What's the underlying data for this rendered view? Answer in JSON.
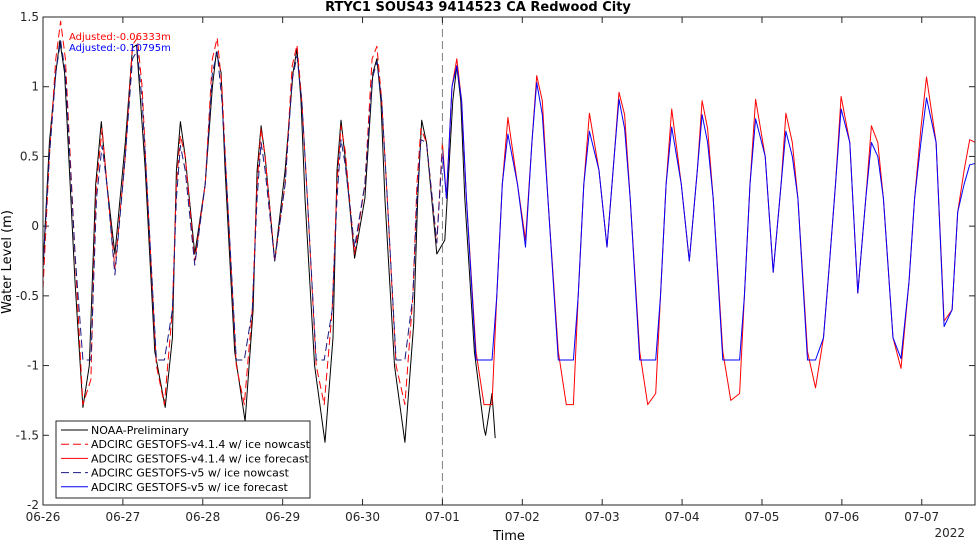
{
  "chart_data": {
    "type": "line",
    "title": "RTYC1 SOUS43 9414523 CA Redwood City",
    "xlabel": "Time",
    "ylabel": "Water Level (m)",
    "x_start": "2021-06-26",
    "x_end": "2021-07-07 16:00",
    "ylim": [
      -2,
      1.5
    ],
    "yticks": [
      -2,
      -1.5,
      -1,
      -0.5,
      0,
      0.5,
      1,
      1.5
    ],
    "ytick_labels": [
      "-2",
      "-1.5",
      "-1",
      "-0.5",
      "0",
      "0.5",
      "1",
      "1.5"
    ],
    "xticks": [
      "2021-06-26",
      "2021-06-27",
      "2021-06-28",
      "2021-06-29",
      "2021-06-30",
      "2021-07-01",
      "2021-07-02",
      "2021-07-03",
      "2021-07-04",
      "2021-07-05",
      "2021-07-06",
      "2021-07-07"
    ],
    "xtick_labels": [
      "06-26",
      "06-27",
      "06-28",
      "06-29",
      "06-30",
      "07-01",
      "07-02",
      "07-03",
      "07-04",
      "07-05",
      "07-06",
      "07-07"
    ],
    "year_label": "2022",
    "nowcast_end": "2021-07-01",
    "grid": false,
    "legend_position": "bottom-left",
    "annotations": [
      {
        "text": "Adjusted:-0.06333m",
        "color": "#ff0000"
      },
      {
        "text": "Adjusted:-0.10795m",
        "color": "#0000ff"
      }
    ],
    "series": [
      {
        "name": "NOAA-Preliminary",
        "color": "#000000",
        "style": "solid",
        "x": [
          0.0,
          0.08,
          0.16,
          0.21,
          0.27,
          0.4,
          0.5,
          0.58,
          0.63,
          0.66,
          0.73,
          0.8,
          0.9,
          1.03,
          1.12,
          1.17,
          1.22,
          1.28,
          1.4,
          1.53,
          1.62,
          1.67,
          1.72,
          1.78,
          1.9,
          2.03,
          2.12,
          2.17,
          2.23,
          2.28,
          2.4,
          2.53,
          2.63,
          2.68,
          2.73,
          2.78,
          2.9,
          3.03,
          3.13,
          3.18,
          3.23,
          3.28,
          3.4,
          3.53,
          3.63,
          3.68,
          3.73,
          3.78,
          3.9,
          4.03,
          4.13,
          4.18,
          4.23,
          4.28,
          4.4,
          4.53,
          4.64,
          4.69,
          4.74,
          4.8,
          4.93,
          5.03,
          5.13,
          5.18,
          5.23,
          5.28,
          5.4,
          5.52,
          5.54,
          5.62,
          5.66
        ],
        "y": [
          -0.3,
          0.6,
          1.1,
          1.33,
          1.1,
          -0.4,
          -1.3,
          -1.0,
          -0.2,
          0.3,
          0.75,
          0.3,
          -0.2,
          0.6,
          1.28,
          1.3,
          0.9,
          0.4,
          -0.9,
          -1.3,
          -0.8,
          0.4,
          0.75,
          0.5,
          -0.2,
          0.3,
          1.0,
          1.25,
          1.1,
          0.4,
          -0.9,
          -1.4,
          -0.6,
          0.4,
          0.72,
          0.5,
          -0.25,
          0.4,
          1.1,
          1.27,
          0.9,
          0.2,
          -1.0,
          -1.55,
          -0.8,
          0.4,
          0.76,
          0.5,
          -0.23,
          0.2,
          1.1,
          1.2,
          0.9,
          0.2,
          -1.0,
          -1.55,
          -0.7,
          0.2,
          0.76,
          0.6,
          -0.2,
          -0.1,
          0.9,
          1.15,
          0.9,
          0.2,
          -0.9,
          -1.45,
          -1.5,
          -1.2,
          -1.52
        ]
      },
      {
        "name": "ADCIRC GESTOFS-v4.1.4 w/ ice nowcast",
        "color": "#ff0000",
        "style": "dashed",
        "x": [
          0.0,
          0.08,
          0.16,
          0.22,
          0.28,
          0.4,
          0.5,
          0.6,
          0.64,
          0.67,
          0.74,
          0.8,
          0.9,
          1.03,
          1.12,
          1.18,
          1.24,
          1.3,
          1.42,
          1.52,
          1.62,
          1.67,
          1.72,
          1.78,
          1.9,
          2.03,
          2.12,
          2.18,
          2.24,
          2.3,
          2.42,
          2.52,
          2.62,
          2.68,
          2.73,
          2.78,
          2.9,
          3.03,
          3.12,
          3.18,
          3.24,
          3.3,
          3.42,
          3.52,
          3.62,
          3.68,
          3.73,
          3.78,
          3.9,
          4.03,
          4.12,
          4.18,
          4.24,
          4.3,
          4.42,
          4.53,
          4.63,
          4.68,
          4.73,
          4.8,
          4.93,
          5.0
        ],
        "y": [
          -0.45,
          0.5,
          1.2,
          1.47,
          1.2,
          -0.2,
          -1.28,
          -1.1,
          -0.2,
          0.3,
          0.7,
          0.3,
          -0.3,
          0.5,
          1.3,
          1.35,
          1.0,
          0.3,
          -1.0,
          -1.28,
          -0.6,
          0.3,
          0.65,
          0.5,
          -0.25,
          0.3,
          1.2,
          1.35,
          1.0,
          0.3,
          -1.0,
          -1.28,
          -0.6,
          0.3,
          0.7,
          0.5,
          -0.25,
          0.3,
          1.15,
          1.3,
          0.9,
          0.3,
          -1.0,
          -1.28,
          -0.6,
          0.3,
          0.72,
          0.55,
          -0.2,
          0.3,
          1.2,
          1.29,
          0.9,
          0.3,
          -1.0,
          -1.28,
          -0.5,
          0.3,
          0.7,
          0.6,
          -0.12,
          0.6
        ]
      },
      {
        "name": "ADCIRC GESTOFS-v4.1.4 w/ ice forecast",
        "color": "#ff0000",
        "style": "solid",
        "x": [
          5.0,
          5.05,
          5.12,
          5.18,
          5.24,
          5.3,
          5.42,
          5.52,
          5.62,
          5.68,
          5.75,
          5.82,
          5.94,
          6.04,
          6.12,
          6.18,
          6.25,
          6.32,
          6.45,
          6.55,
          6.64,
          6.7,
          6.77,
          6.84,
          6.96,
          7.06,
          7.15,
          7.21,
          7.28,
          7.35,
          7.47,
          7.57,
          7.67,
          7.73,
          7.8,
          7.87,
          7.99,
          8.09,
          8.19,
          8.25,
          8.32,
          8.39,
          8.51,
          8.61,
          8.72,
          8.78,
          8.85,
          8.92,
          9.04,
          9.14,
          9.24,
          9.3,
          9.38,
          9.45,
          9.57,
          9.67,
          9.77,
          9.84,
          9.92,
          9.99,
          10.1,
          10.2,
          10.3,
          10.37,
          10.45,
          10.52,
          10.64,
          10.74,
          10.84,
          10.91,
          10.99,
          11.06,
          11.18,
          11.28,
          11.38,
          11.45,
          11.53,
          11.6,
          11.67
        ],
        "y": [
          0.6,
          0.2,
          1.0,
          1.2,
          0.9,
          0.2,
          -0.9,
          -1.28,
          -1.28,
          -0.5,
          0.3,
          0.78,
          0.3,
          -0.1,
          0.6,
          1.08,
          0.9,
          0.2,
          -0.9,
          -1.28,
          -1.28,
          -0.5,
          0.3,
          0.81,
          0.4,
          -0.15,
          0.5,
          0.96,
          0.8,
          0.2,
          -0.9,
          -1.28,
          -1.2,
          -0.5,
          0.3,
          0.84,
          0.3,
          -0.25,
          0.4,
          0.9,
          0.7,
          0.2,
          -0.9,
          -1.25,
          -1.2,
          -0.5,
          0.3,
          0.91,
          0.5,
          -0.33,
          0.3,
          0.81,
          0.6,
          0.2,
          -0.9,
          -1.16,
          -0.8,
          -0.3,
          0.3,
          0.93,
          0.6,
          -0.48,
          0.2,
          0.72,
          0.6,
          0.2,
          -0.8,
          -1.02,
          -0.4,
          0.2,
          0.7,
          1.07,
          0.6,
          -0.68,
          -0.6,
          0.1,
          0.4,
          0.62,
          0.6
        ]
      },
      {
        "name": "ADCIRC GESTOFS-v5 w/ ice nowcast",
        "color": "#1a1a80",
        "style": "dashed",
        "x": [
          0.0,
          0.08,
          0.16,
          0.22,
          0.28,
          0.4,
          0.5,
          0.6,
          0.64,
          0.67,
          0.74,
          0.8,
          0.9,
          1.03,
          1.12,
          1.18,
          1.24,
          1.3,
          1.42,
          1.52,
          1.62,
          1.67,
          1.72,
          1.78,
          1.9,
          2.03,
          2.12,
          2.18,
          2.24,
          2.3,
          2.42,
          2.52,
          2.62,
          2.68,
          2.73,
          2.78,
          2.9,
          3.03,
          3.12,
          3.18,
          3.24,
          3.3,
          3.42,
          3.52,
          3.62,
          3.68,
          3.73,
          3.78,
          3.9,
          4.03,
          4.12,
          4.18,
          4.24,
          4.3,
          4.42,
          4.53,
          4.63,
          4.68,
          4.73,
          4.8,
          4.93,
          5.0
        ],
        "y": [
          -0.3,
          0.5,
          1.1,
          1.33,
          1.1,
          -0.2,
          -0.96,
          -0.96,
          -0.3,
          0.2,
          0.58,
          0.3,
          -0.35,
          0.5,
          1.2,
          1.26,
          0.9,
          0.3,
          -0.96,
          -0.96,
          -0.6,
          0.2,
          0.58,
          0.4,
          -0.28,
          0.3,
          1.1,
          1.25,
          0.9,
          0.3,
          -0.96,
          -0.96,
          -0.6,
          0.2,
          0.6,
          0.4,
          -0.25,
          0.3,
          1.05,
          1.22,
          0.9,
          0.3,
          -0.96,
          -0.96,
          -0.6,
          0.2,
          0.62,
          0.45,
          -0.15,
          0.3,
          1.05,
          1.18,
          0.9,
          0.3,
          -0.96,
          -0.96,
          -0.5,
          0.2,
          0.62,
          0.6,
          -0.12,
          0.55
        ]
      },
      {
        "name": "ADCIRC GESTOFS-v5 w/ ice forecast",
        "color": "#0000ff",
        "style": "solid",
        "x": [
          5.0,
          5.05,
          5.12,
          5.18,
          5.24,
          5.3,
          5.42,
          5.52,
          5.62,
          5.68,
          5.75,
          5.82,
          5.94,
          6.04,
          6.12,
          6.18,
          6.25,
          6.32,
          6.45,
          6.55,
          6.64,
          6.7,
          6.77,
          6.84,
          6.96,
          7.06,
          7.15,
          7.21,
          7.28,
          7.35,
          7.47,
          7.57,
          7.67,
          7.73,
          7.8,
          7.87,
          7.99,
          8.09,
          8.19,
          8.25,
          8.32,
          8.39,
          8.51,
          8.61,
          8.72,
          8.78,
          8.85,
          8.92,
          9.04,
          9.14,
          9.24,
          9.3,
          9.38,
          9.45,
          9.57,
          9.67,
          9.77,
          9.84,
          9.92,
          9.99,
          10.1,
          10.2,
          10.3,
          10.37,
          10.45,
          10.52,
          10.64,
          10.74,
          10.84,
          10.91,
          10.99,
          11.06,
          11.18,
          11.28,
          11.38,
          11.45,
          11.53,
          11.6,
          11.67
        ],
        "y": [
          0.55,
          0.2,
          1.0,
          1.15,
          0.9,
          0.2,
          -0.96,
          -0.96,
          -0.96,
          -0.5,
          0.3,
          0.66,
          0.3,
          -0.15,
          0.6,
          1.03,
          0.8,
          0.2,
          -0.96,
          -0.96,
          -0.96,
          -0.5,
          0.3,
          0.68,
          0.4,
          -0.15,
          0.5,
          0.91,
          0.7,
          0.2,
          -0.96,
          -0.96,
          -0.96,
          -0.5,
          0.3,
          0.71,
          0.3,
          -0.25,
          0.4,
          0.8,
          0.6,
          0.2,
          -0.96,
          -0.96,
          -0.96,
          -0.5,
          0.3,
          0.77,
          0.5,
          -0.33,
          0.3,
          0.68,
          0.5,
          0.2,
          -0.96,
          -0.96,
          -0.8,
          -0.3,
          0.3,
          0.84,
          0.6,
          -0.48,
          0.2,
          0.6,
          0.5,
          0.2,
          -0.8,
          -0.95,
          -0.4,
          0.2,
          0.6,
          0.92,
          0.6,
          -0.72,
          -0.6,
          0.1,
          0.3,
          0.44,
          0.45
        ]
      }
    ]
  }
}
